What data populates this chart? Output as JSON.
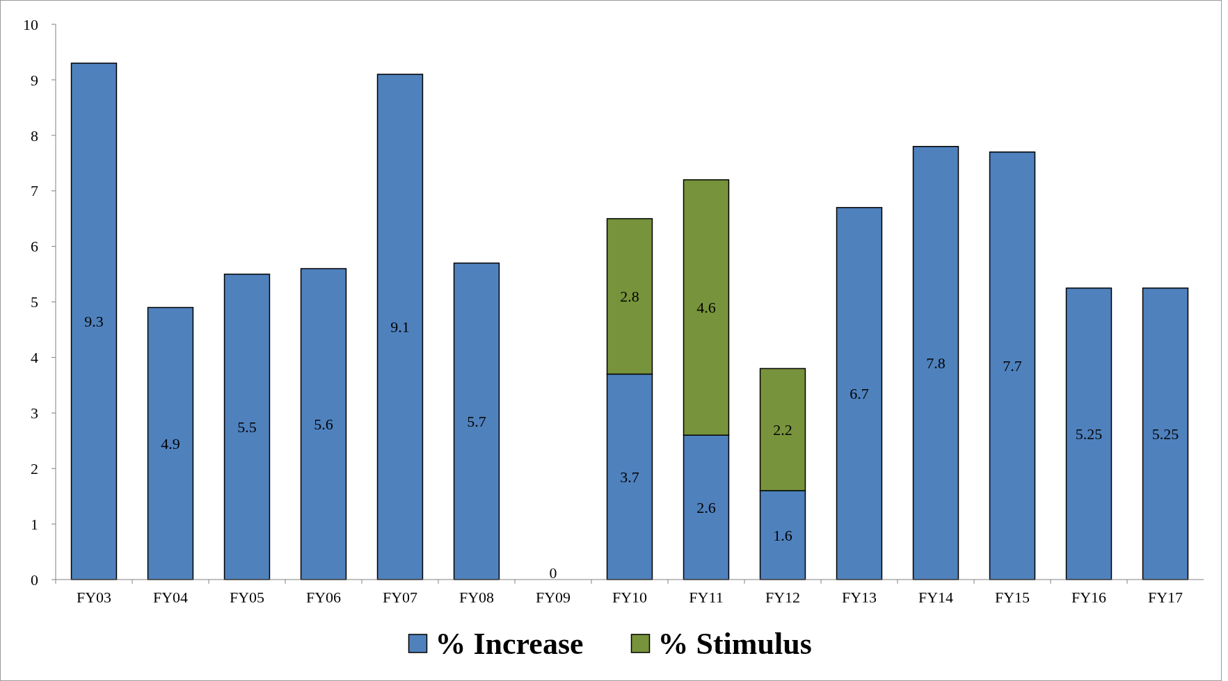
{
  "chart_data": {
    "type": "bar",
    "stacked": true,
    "categories": [
      "FY03",
      "FY04",
      "FY05",
      "FY06",
      "FY07",
      "FY08",
      "FY09",
      "FY10",
      "FY11",
      "FY12",
      "FY13",
      "FY14",
      "FY15",
      "FY16",
      "FY17"
    ],
    "series": [
      {
        "name": "% Increase",
        "color": "#4f81bd",
        "values": [
          9.3,
          4.9,
          5.5,
          5.6,
          9.1,
          5.7,
          0,
          3.7,
          2.6,
          1.6,
          6.7,
          7.8,
          7.7,
          5.25,
          5.25
        ]
      },
      {
        "name": "% Stimulus",
        "color": "#77933c",
        "values": [
          null,
          null,
          null,
          null,
          null,
          null,
          null,
          2.8,
          4.6,
          2.2,
          null,
          null,
          null,
          null,
          null
        ]
      }
    ],
    "ylim": [
      0,
      10
    ],
    "yticks": [
      0,
      1,
      2,
      3,
      4,
      5,
      6,
      7,
      8,
      9,
      10
    ],
    "data_labels": true,
    "legend": "bottom",
    "grid": false
  }
}
